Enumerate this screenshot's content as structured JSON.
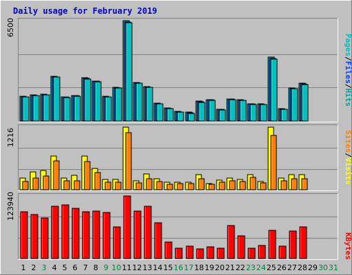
{
  "title": "Daily usage for February 2019",
  "colors": {
    "background": "#c0c0c0",
    "panel": "#c0c0c0",
    "title": "#0000cc",
    "pages": "#00c0c0",
    "files": "#0040ff",
    "hits": "#00a0a0",
    "visits": "#ffff00",
    "sites": "#ff8000",
    "kbytes": "#ff0000",
    "weekday": "#000000",
    "weekend": "#008040"
  },
  "chart_data": [
    {
      "type": "bar",
      "panel": "hits-files-pages",
      "ymax_label": "6500",
      "ymax": 6500,
      "legend": {
        "pages": "Pages",
        "slash1": "/",
        "files": "Files",
        "slash2": "/",
        "hits": "Hits"
      },
      "categories": [
        "1",
        "2",
        "3",
        "4",
        "5",
        "6",
        "7",
        "8",
        "9",
        "10",
        "11",
        "12",
        "13",
        "14",
        "15",
        "16",
        "17",
        "18",
        "19",
        "20",
        "21",
        "22",
        "23",
        "24",
        "25",
        "26",
        "27",
        "28",
        "29",
        "30",
        "31"
      ],
      "series": [
        {
          "name": "Hits",
          "values": [
            1590,
            1680,
            1720,
            2900,
            1580,
            1660,
            2800,
            2600,
            1610,
            2180,
            6500,
            2510,
            2220,
            1150,
            840,
            620,
            560,
            1270,
            1390,
            770,
            1440,
            1370,
            1130,
            1100,
            4120,
            790,
            2140,
            2440,
            0,
            0,
            0
          ]
        },
        {
          "name": "Files",
          "values": [
            1560,
            1650,
            1690,
            2860,
            1550,
            1630,
            2760,
            2560,
            1580,
            2140,
            6420,
            2470,
            2180,
            1120,
            810,
            590,
            530,
            1240,
            1360,
            740,
            1410,
            1340,
            1100,
            1070,
            4060,
            760,
            2100,
            2400,
            0,
            0,
            0
          ]
        },
        {
          "name": "Pages",
          "values": [
            1540,
            1630,
            1670,
            2830,
            1530,
            1610,
            2730,
            2530,
            1560,
            2120,
            6380,
            2440,
            2160,
            1100,
            790,
            570,
            510,
            1220,
            1340,
            720,
            1390,
            1320,
            1080,
            1050,
            4020,
            740,
            2080,
            2380,
            0,
            0,
            0
          ]
        }
      ]
    },
    {
      "type": "bar",
      "panel": "visits-sites",
      "ymax_label": "1216",
      "ymax": 1216,
      "legend": {
        "sites": "Sites",
        "slash": "/",
        "visits": "Visits"
      },
      "categories": [
        "1",
        "2",
        "3",
        "4",
        "5",
        "6",
        "7",
        "8",
        "9",
        "10",
        "11",
        "12",
        "13",
        "14",
        "15",
        "16",
        "17",
        "18",
        "19",
        "20",
        "21",
        "22",
        "23",
        "24",
        "25",
        "26",
        "27",
        "28",
        "29",
        "30",
        "31"
      ],
      "series": [
        {
          "name": "Visits",
          "values": [
            230,
            350,
            380,
            650,
            230,
            280,
            650,
            420,
            200,
            200,
            1216,
            170,
            310,
            220,
            150,
            150,
            150,
            290,
            120,
            190,
            230,
            200,
            300,
            160,
            1216,
            230,
            290,
            290,
            0,
            0,
            0
          ]
        },
        {
          "name": "Sites",
          "values": [
            160,
            230,
            270,
            560,
            170,
            180,
            550,
            330,
            150,
            150,
            1110,
            140,
            220,
            160,
            110,
            120,
            120,
            220,
            110,
            150,
            170,
            160,
            240,
            140,
            1060,
            170,
            220,
            220,
            0,
            0,
            0
          ]
        }
      ]
    },
    {
      "type": "bar",
      "panel": "kbytes",
      "ymax_label": "123940",
      "ymax": 123940,
      "legend": {
        "kbytes": "KBytes"
      },
      "categories": [
        "1",
        "2",
        "3",
        "4",
        "5",
        "6",
        "7",
        "8",
        "9",
        "10",
        "11",
        "12",
        "13",
        "14",
        "15",
        "16",
        "17",
        "18",
        "19",
        "20",
        "21",
        "22",
        "23",
        "24",
        "25",
        "26",
        "27",
        "28",
        "29",
        "30",
        "31"
      ],
      "series": [
        {
          "name": "KBytes",
          "values": [
            92000,
            87000,
            81000,
            104000,
            106000,
            100000,
            92000,
            94000,
            91000,
            63000,
            123940,
            94000,
            103000,
            71000,
            33000,
            21000,
            24000,
            19000,
            23000,
            21000,
            66000,
            45000,
            21000,
            26000,
            56000,
            24000,
            55000,
            63000,
            0,
            0,
            0
          ]
        }
      ]
    }
  ],
  "days": [
    {
      "label": "1",
      "weekend": false
    },
    {
      "label": "2",
      "weekend": false
    },
    {
      "label": "3",
      "weekend": true
    },
    {
      "label": "4",
      "weekend": false
    },
    {
      "label": "5",
      "weekend": false
    },
    {
      "label": "6",
      "weekend": false
    },
    {
      "label": "7",
      "weekend": false
    },
    {
      "label": "8",
      "weekend": false
    },
    {
      "label": "9",
      "weekend": true
    },
    {
      "label": "10",
      "weekend": true
    },
    {
      "label": "11",
      "weekend": false
    },
    {
      "label": "12",
      "weekend": false
    },
    {
      "label": "13",
      "weekend": false
    },
    {
      "label": "14",
      "weekend": false
    },
    {
      "label": "15",
      "weekend": false
    },
    {
      "label": "16",
      "weekend": true
    },
    {
      "label": "17",
      "weekend": true
    },
    {
      "label": "18",
      "weekend": false
    },
    {
      "label": "19",
      "weekend": false
    },
    {
      "label": "20",
      "weekend": false
    },
    {
      "label": "21",
      "weekend": false
    },
    {
      "label": "22",
      "weekend": false
    },
    {
      "label": "23",
      "weekend": true
    },
    {
      "label": "24",
      "weekend": true
    },
    {
      "label": "25",
      "weekend": false
    },
    {
      "label": "26",
      "weekend": false
    },
    {
      "label": "27",
      "weekend": false
    },
    {
      "label": "28",
      "weekend": false
    },
    {
      "label": "29",
      "weekend": false
    },
    {
      "label": "30",
      "weekend": true
    },
    {
      "label": "31",
      "weekend": true
    }
  ]
}
